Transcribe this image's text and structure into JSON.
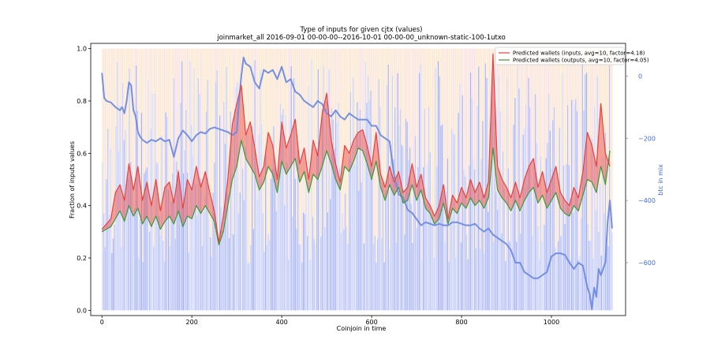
{
  "chart_data": {
    "type": "line",
    "title": "Type of inputs for given cjtx (values)",
    "subtitle": "joinmarket_all 2016-09-01 00-00-00--2016-10-01 00-00-00_unknown-static-100-1utxo",
    "xlabel": "Coinjoin in time",
    "ylabel": "Fraction of inputs values",
    "y2label": "btc in mix",
    "xlim": [
      -25,
      1165
    ],
    "ylim": [
      -0.02,
      1.02
    ],
    "y2lim": [
      -770,
      105
    ],
    "x_ticks": [
      0,
      200,
      400,
      600,
      800,
      1000
    ],
    "y_ticks": [
      0.0,
      0.2,
      0.4,
      0.6,
      0.8,
      1.0
    ],
    "y_tick_labels": [
      "0.0",
      "0.2",
      "0.4",
      "0.6",
      "0.8",
      "1.0"
    ],
    "y2_ticks": [
      0,
      -200,
      -400,
      -600
    ],
    "y2_tick_labels": [
      "0",
      "−200",
      "−400",
      "−600"
    ],
    "grid": false,
    "legend_position": "top-right",
    "colors": {
      "inputs": "#e8413c",
      "outputs": "#3a9a3a",
      "btc": "#6f8be0",
      "bars_blue": "#8c9cf2",
      "bars_orange": "#f8d6ab",
      "bars_pink": "#f2c6d2"
    },
    "series": [
      {
        "name": "Predicted wallets (inputs, avg=10, factor=4.18)",
        "axis": "left",
        "x": [
          0,
          10,
          20,
          30,
          40,
          50,
          60,
          70,
          80,
          90,
          100,
          110,
          120,
          130,
          140,
          150,
          160,
          170,
          180,
          190,
          200,
          210,
          220,
          230,
          240,
          250,
          260,
          270,
          280,
          290,
          300,
          310,
          320,
          330,
          340,
          350,
          360,
          370,
          380,
          390,
          400,
          410,
          420,
          430,
          440,
          450,
          460,
          470,
          480,
          490,
          500,
          510,
          520,
          530,
          540,
          550,
          560,
          570,
          580,
          590,
          600,
          610,
          620,
          630,
          640,
          650,
          660,
          670,
          680,
          690,
          700,
          710,
          720,
          730,
          740,
          750,
          760,
          770,
          780,
          790,
          800,
          810,
          820,
          830,
          840,
          850,
          860,
          870,
          880,
          890,
          900,
          910,
          920,
          930,
          940,
          950,
          960,
          970,
          980,
          990,
          1000,
          1010,
          1020,
          1030,
          1040,
          1050,
          1060,
          1070,
          1080,
          1090,
          1100,
          1110,
          1120,
          1130
        ],
        "values": [
          0.31,
          0.33,
          0.35,
          0.45,
          0.48,
          0.42,
          0.56,
          0.46,
          0.55,
          0.42,
          0.49,
          0.4,
          0.5,
          0.38,
          0.47,
          0.49,
          0.41,
          0.53,
          0.39,
          0.5,
          0.46,
          0.55,
          0.47,
          0.53,
          0.45,
          0.38,
          0.26,
          0.36,
          0.5,
          0.71,
          0.79,
          0.86,
          0.67,
          0.72,
          0.62,
          0.51,
          0.55,
          0.68,
          0.63,
          0.5,
          0.72,
          0.62,
          0.67,
          0.73,
          0.56,
          0.62,
          0.5,
          0.65,
          0.59,
          0.75,
          0.83,
          0.65,
          0.56,
          0.49,
          0.63,
          0.6,
          0.65,
          0.68,
          0.69,
          0.63,
          0.55,
          0.68,
          0.52,
          0.47,
          0.55,
          0.49,
          0.53,
          0.45,
          0.47,
          0.56,
          0.47,
          0.52,
          0.43,
          0.4,
          0.36,
          0.4,
          0.48,
          0.35,
          0.44,
          0.41,
          0.47,
          0.43,
          0.5,
          0.45,
          0.49,
          0.43,
          0.49,
          0.98,
          0.55,
          0.5,
          0.47,
          0.43,
          0.49,
          0.43,
          0.5,
          0.55,
          0.58,
          0.47,
          0.53,
          0.45,
          0.5,
          0.55,
          0.45,
          0.42,
          0.4,
          0.47,
          0.43,
          0.53,
          0.68,
          0.63,
          0.55,
          0.79,
          0.6,
          0.55
        ]
      },
      {
        "name": "Predicted wallets (outputs, avg=10, factor=4.05)",
        "axis": "left",
        "x": [
          0,
          10,
          20,
          30,
          40,
          50,
          60,
          70,
          80,
          90,
          100,
          110,
          120,
          130,
          140,
          150,
          160,
          170,
          180,
          190,
          200,
          210,
          220,
          230,
          240,
          250,
          260,
          270,
          280,
          290,
          300,
          310,
          320,
          330,
          340,
          350,
          360,
          370,
          380,
          390,
          400,
          410,
          420,
          430,
          440,
          450,
          460,
          470,
          480,
          490,
          500,
          510,
          520,
          530,
          540,
          550,
          560,
          570,
          580,
          590,
          600,
          610,
          620,
          630,
          640,
          650,
          660,
          670,
          680,
          690,
          700,
          710,
          720,
          730,
          740,
          750,
          760,
          770,
          780,
          790,
          800,
          810,
          820,
          830,
          840,
          850,
          860,
          870,
          880,
          890,
          900,
          910,
          920,
          930,
          940,
          950,
          960,
          970,
          980,
          990,
          1000,
          1010,
          1020,
          1030,
          1040,
          1050,
          1060,
          1070,
          1080,
          1090,
          1100,
          1110,
          1120,
          1130
        ],
        "values": [
          0.3,
          0.31,
          0.32,
          0.35,
          0.38,
          0.34,
          0.4,
          0.36,
          0.39,
          0.33,
          0.36,
          0.32,
          0.36,
          0.31,
          0.34,
          0.36,
          0.33,
          0.38,
          0.32,
          0.36,
          0.35,
          0.4,
          0.37,
          0.4,
          0.37,
          0.34,
          0.25,
          0.3,
          0.4,
          0.5,
          0.55,
          0.65,
          0.58,
          0.55,
          0.52,
          0.46,
          0.49,
          0.55,
          0.52,
          0.45,
          0.57,
          0.52,
          0.55,
          0.58,
          0.49,
          0.53,
          0.45,
          0.52,
          0.5,
          0.55,
          0.61,
          0.56,
          0.5,
          0.46,
          0.55,
          0.53,
          0.57,
          0.62,
          0.61,
          0.56,
          0.5,
          0.57,
          0.47,
          0.42,
          0.48,
          0.44,
          0.47,
          0.41,
          0.42,
          0.48,
          0.42,
          0.46,
          0.39,
          0.37,
          0.33,
          0.35,
          0.41,
          0.33,
          0.39,
          0.37,
          0.41,
          0.39,
          0.43,
          0.4,
          0.42,
          0.39,
          0.43,
          0.62,
          0.46,
          0.43,
          0.41,
          0.38,
          0.42,
          0.38,
          0.42,
          0.45,
          0.47,
          0.41,
          0.44,
          0.39,
          0.42,
          0.45,
          0.39,
          0.37,
          0.36,
          0.4,
          0.38,
          0.44,
          0.5,
          0.49,
          0.45,
          0.55,
          0.48,
          0.61
        ]
      },
      {
        "name": "btc in mix",
        "axis": "right",
        "x": [
          0,
          5,
          10,
          20,
          30,
          40,
          45,
          50,
          55,
          60,
          65,
          70,
          75,
          80,
          85,
          90,
          100,
          110,
          120,
          130,
          140,
          150,
          160,
          170,
          180,
          190,
          200,
          210,
          220,
          230,
          240,
          250,
          260,
          270,
          280,
          290,
          300,
          305,
          310,
          315,
          320,
          330,
          340,
          350,
          360,
          370,
          380,
          390,
          400,
          410,
          420,
          430,
          440,
          450,
          460,
          470,
          480,
          490,
          500,
          510,
          520,
          530,
          540,
          550,
          560,
          570,
          580,
          590,
          600,
          610,
          620,
          630,
          640,
          650,
          660,
          670,
          680,
          690,
          700,
          710,
          720,
          730,
          740,
          750,
          760,
          770,
          780,
          790,
          800,
          810,
          820,
          830,
          840,
          850,
          860,
          870,
          880,
          890,
          900,
          910,
          920,
          930,
          940,
          950,
          960,
          970,
          980,
          990,
          1000,
          1010,
          1020,
          1030,
          1040,
          1050,
          1060,
          1070,
          1080,
          1085,
          1090,
          1095,
          1100,
          1105,
          1110,
          1115,
          1120,
          1125,
          1130,
          1135
        ],
        "values": [
          10,
          -70,
          -80,
          -85,
          -100,
          -110,
          -100,
          -120,
          -80,
          -20,
          -30,
          -110,
          -130,
          -180,
          -195,
          -205,
          -215,
          -205,
          -210,
          -200,
          -210,
          -205,
          -260,
          -200,
          -175,
          -190,
          -210,
          -190,
          -180,
          -185,
          -170,
          -165,
          -170,
          -175,
          -180,
          -190,
          -180,
          -80,
          0,
          60,
          40,
          30,
          -20,
          -40,
          20,
          10,
          20,
          -10,
          30,
          -20,
          -10,
          -50,
          -60,
          -80,
          -90,
          -100,
          -80,
          -90,
          -120,
          -130,
          -110,
          -130,
          -140,
          -120,
          -130,
          -140,
          -140,
          -140,
          -160,
          -160,
          -190,
          -200,
          -210,
          -320,
          -380,
          -390,
          -430,
          -440,
          -460,
          -480,
          -470,
          -475,
          -480,
          -475,
          -480,
          -480,
          -470,
          -470,
          -475,
          -480,
          -480,
          -475,
          -490,
          -500,
          -490,
          -510,
          -520,
          -530,
          -540,
          -560,
          -600,
          -600,
          -630,
          -640,
          -650,
          -650,
          -640,
          -630,
          -580,
          -570,
          -570,
          -575,
          -600,
          -620,
          -600,
          -610,
          -680,
          -700,
          -750,
          -680,
          -710,
          -620,
          -640,
          -620,
          -600,
          -470,
          -400,
          -490
        ]
      }
    ]
  }
}
